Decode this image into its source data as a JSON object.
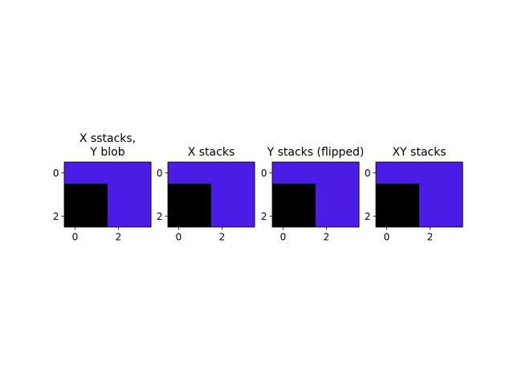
{
  "chart_data": [
    {
      "type": "heatmap",
      "title": "X sstacks,\nY blob",
      "rows": 3,
      "cols": 4,
      "grid": [
        [
          "purple",
          "purple",
          "purple",
          "purple"
        ],
        [
          "black",
          "black",
          "purple",
          "purple"
        ],
        [
          "black",
          "black",
          "purple",
          "purple"
        ]
      ],
      "xticks": [
        0,
        2
      ],
      "yticks": [
        0,
        2
      ],
      "xlim": [
        -0.5,
        3.5
      ],
      "ylim": [
        2.5,
        -0.5
      ],
      "grid_lines": false,
      "legend": "none"
    },
    {
      "type": "heatmap",
      "title": "X stacks",
      "rows": 3,
      "cols": 4,
      "grid": [
        [
          "purple",
          "purple",
          "purple",
          "purple"
        ],
        [
          "black",
          "black",
          "purple",
          "purple"
        ],
        [
          "black",
          "black",
          "purple",
          "purple"
        ]
      ],
      "xticks": [
        0,
        2
      ],
      "yticks": [
        0,
        2
      ],
      "xlim": [
        -0.5,
        3.5
      ],
      "ylim": [
        2.5,
        -0.5
      ],
      "grid_lines": false,
      "legend": "none"
    },
    {
      "type": "heatmap",
      "title": "Y stacks (flipped)",
      "rows": 3,
      "cols": 4,
      "grid": [
        [
          "purple",
          "purple",
          "purple",
          "purple"
        ],
        [
          "black",
          "black",
          "purple",
          "purple"
        ],
        [
          "black",
          "black",
          "purple",
          "purple"
        ]
      ],
      "xticks": [
        0,
        2
      ],
      "yticks": [
        0,
        2
      ],
      "xlim": [
        -0.5,
        3.5
      ],
      "ylim": [
        2.5,
        -0.5
      ],
      "grid_lines": false,
      "legend": "none"
    },
    {
      "type": "heatmap",
      "title": "XY stacks",
      "rows": 3,
      "cols": 4,
      "grid": [
        [
          "purple",
          "purple",
          "purple",
          "purple"
        ],
        [
          "black",
          "black",
          "purple",
          "purple"
        ],
        [
          "black",
          "black",
          "purple",
          "purple"
        ]
      ],
      "xticks": [
        0,
        2
      ],
      "yticks": [
        0,
        2
      ],
      "xlim": [
        -0.5,
        3.5
      ],
      "ylim": [
        2.5,
        -0.5
      ],
      "grid_lines": false,
      "legend": "none"
    }
  ],
  "colors": {
    "purple": "#4a1ce6",
    "black": "#000000",
    "background": "#ffffff",
    "axis": "#000000",
    "text": "#000000"
  }
}
